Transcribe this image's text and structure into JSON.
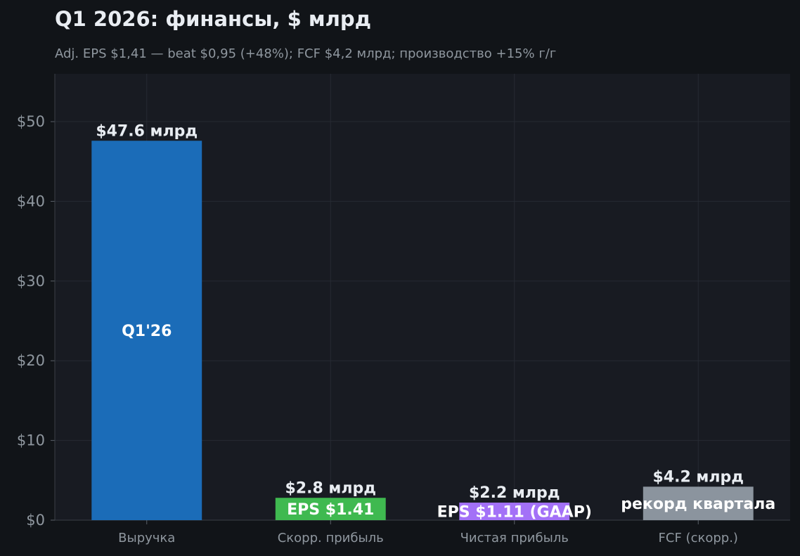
{
  "header": {
    "title": "Q1 2026: финансы, $ млрд",
    "subtitle": "Adj. EPS $1,41 — beat $0,95 (+48%); FCF $4,2 млрд; производство +15% г/г"
  },
  "chart_data": {
    "type": "bar",
    "title": "Q1 2026: финансы, $ млрд",
    "subtitle": "Adj. EPS $1,41 — beat $0,95 (+48%); FCF $4,2 млрд; производство +15% г/г",
    "categories": [
      "Выручка",
      "Скорр. прибыль",
      "Чистая прибыль",
      "FCF (скорр.)"
    ],
    "values": [
      47.6,
      2.8,
      2.2,
      4.2
    ],
    "colors": [
      "#1b6cb8",
      "#3fb950",
      "#a371f7",
      "#8b949e"
    ],
    "value_labels": [
      "$47.6 млрд",
      "$2.8 млрд",
      "$2.2 млрд",
      "$4.2 млрд"
    ],
    "inner_labels": [
      "Q1'26",
      "EPS $1.41",
      "EPS $1.11 (GAAP)",
      "рекорд квартала"
    ],
    "ylim": [
      0,
      56
    ],
    "yticks": [
      0,
      10,
      20,
      30,
      40,
      50
    ],
    "ytick_labels": [
      "$0",
      "$10",
      "$20",
      "$30",
      "$40",
      "$50"
    ],
    "grid": true,
    "legend": "none",
    "xlabel": "",
    "ylabel": ""
  }
}
